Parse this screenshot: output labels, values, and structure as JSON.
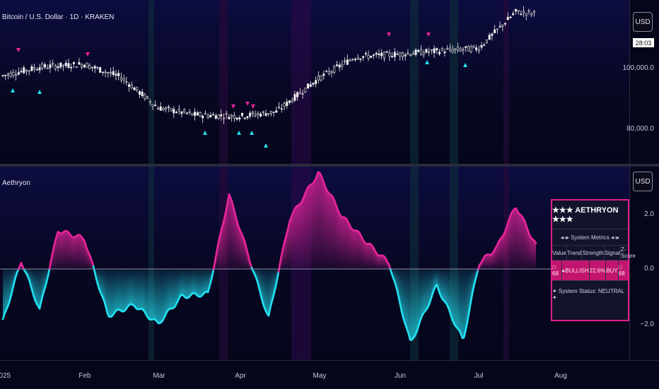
{
  "price_pane": {
    "title": "Bitcoin / U.S. Dollar · 1D · KRAKEN",
    "currency_button": "USD",
    "current_price_badge": "28:03",
    "axis_labels": [
      "100,000.0",
      "80,000.0"
    ]
  },
  "indicator_pane": {
    "title": "Aethryon",
    "currency_button": "USD",
    "axis_labels": [
      "2.0",
      "0.0",
      "−2.0"
    ]
  },
  "dashboard": {
    "title": "★★★ AETHRYON ★★★",
    "subtitle": "◂◃▸ System Metrics ◂◃▸",
    "headers": [
      "Value",
      "Trend",
      "Strength",
      "Signal",
      "Z-Score"
    ],
    "values": [
      "□ 68",
      "▸BULLISH",
      "22.6%",
      "BUY",
      "□ 68"
    ],
    "status": "✦ System Status: NEUTRAL ✦"
  },
  "time_axis": [
    "2025",
    "Feb",
    "Mar",
    "Apr",
    "May",
    "Jun",
    "Jul",
    "Aug"
  ],
  "colors": {
    "bull": "#e8249a",
    "bear": "#22e0f0",
    "candle": "#f2f2f2",
    "background": "#06061a"
  },
  "chart_data": [
    {
      "type": "line",
      "title": "Bitcoin / U.S. Dollar · 1D · KRAKEN",
      "description_series": "close",
      "x": [
        "2025-01-01",
        "2025-01-15",
        "2025-02-01",
        "2025-02-15",
        "2025-03-01",
        "2025-03-15",
        "2025-04-01",
        "2025-04-15",
        "2025-05-01",
        "2025-05-15",
        "2025-06-01",
        "2025-06-15",
        "2025-07-01",
        "2025-07-15",
        "2025-07-23"
      ],
      "series": [
        {
          "values": [
            97000,
            100000,
            101000,
            96500,
            86000,
            83500,
            83000,
            84500,
            96000,
            103500,
            104500,
            105500,
            106500,
            119000,
            118500
          ]
        }
      ],
      "yticks": [
        80000,
        100000
      ]
    },
    {
      "type": "area",
      "title": "Aethryon",
      "x": [
        "2025-01-01",
        "2025-01-08",
        "2025-01-15",
        "2025-01-22",
        "2025-02-01",
        "2025-02-10",
        "2025-02-20",
        "2025-03-01",
        "2025-03-10",
        "2025-03-20",
        "2025-03-28",
        "2025-04-05",
        "2025-04-12",
        "2025-04-20",
        "2025-05-01",
        "2025-05-10",
        "2025-05-20",
        "2025-05-28",
        "2025-06-05",
        "2025-06-15",
        "2025-06-25",
        "2025-07-01",
        "2025-07-08",
        "2025-07-15",
        "2025-07-23"
      ],
      "series": [
        {
          "values": [
            -1.9,
            0.3,
            -1.5,
            1.4,
            1.1,
            -1.7,
            -1.3,
            -2.0,
            -1.0,
            -0.9,
            2.7,
            0.3,
            -1.8,
            1.8,
            3.5,
            1.9,
            0.9,
            0.2,
            -2.7,
            -0.6,
            -2.6,
            0.2,
            0.8,
            2.3,
            0.8
          ]
        }
      ],
      "yticks": [
        2.0,
        0.0,
        -2.0
      ],
      "ylim": [
        -3.5,
        4.0
      ]
    }
  ]
}
